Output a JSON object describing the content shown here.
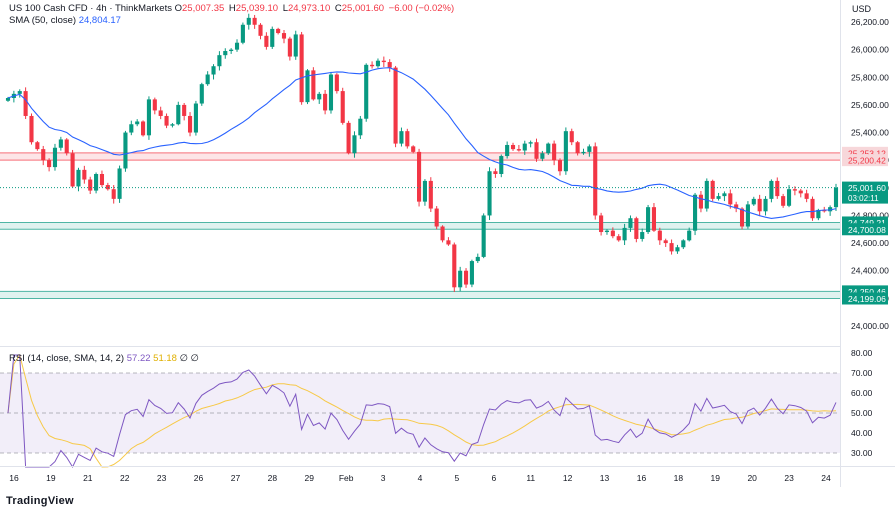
{
  "header": {
    "symbol": "US 100 Cash CFD · 4h · ThinkMarkets",
    "o_label": "O",
    "o_value": "25,007.35",
    "h_label": "H",
    "h_value": "25,039.10",
    "l_label": "L",
    "l_value": "24,973.10",
    "c_label": "C",
    "c_value": "25,001.60",
    "change": "−6.00 (−0.02%)",
    "sma_label": "SMA (50, close)",
    "sma_value": "24,804.17",
    "rsi_label": "RSI (14, close, SMA, 14, 2)",
    "rsi_value": "57.22",
    "rsi_sma_value": "51.18",
    "rsi_extra": "∅ ∅"
  },
  "currency": "USD",
  "branding": "TradingView",
  "colors": {
    "up": "#089981",
    "down": "#f23645",
    "sma": "#2962ff",
    "rsi": "#7e57c2",
    "rsi_sma": "#f7c948",
    "resistance_zone": "#f23645",
    "support_zone": "#089981"
  },
  "chart_data": [
    {
      "type": "candlestick",
      "title": "US 100 Cash CFD · 4h · ThinkMarkets",
      "ylabel": "USD",
      "ylim": [
        24000,
        26300
      ],
      "y_ticks": [
        24000,
        24200,
        24400,
        24600,
        24800,
        25000,
        25200,
        25400,
        25600,
        25800,
        26000,
        26200
      ],
      "x_tick_labels": [
        "16",
        "19",
        "21",
        "22",
        "23",
        "26",
        "27",
        "28",
        "29",
        "Feb",
        "3",
        "4",
        "5",
        "6",
        "11",
        "12",
        "13",
        "16",
        "18",
        "19",
        "20",
        "23",
        "24"
      ],
      "last_price": 25001.6,
      "countdown": "03:02:11",
      "zones": [
        {
          "name": "resistance",
          "low": 25200.42,
          "high": 25253.12
        },
        {
          "name": "support-upper",
          "low": 24700.08,
          "high": 24749.21
        },
        {
          "name": "support-lower",
          "low": 24199.06,
          "high": 24250.46
        }
      ],
      "closes": [
        25650,
        25680,
        25700,
        25520,
        25330,
        25280,
        25200,
        25150,
        25290,
        25350,
        25250,
        25010,
        25130,
        25060,
        24980,
        25100,
        25020,
        24990,
        24920,
        25140,
        25400,
        25460,
        25480,
        25380,
        25640,
        25560,
        25520,
        25450,
        25460,
        25600,
        25520,
        25400,
        25610,
        25750,
        25820,
        25880,
        25960,
        25990,
        26000,
        26050,
        26180,
        26230,
        26180,
        26100,
        26020,
        26150,
        26120,
        26080,
        25950,
        26110,
        25620,
        25850,
        25640,
        25680,
        25560,
        25820,
        25700,
        25470,
        25250,
        25380,
        25500,
        25890,
        25880,
        25920,
        25910,
        25870,
        25320,
        25410,
        25300,
        25260,
        24900,
        25050,
        24850,
        24720,
        24620,
        24590,
        24280,
        24400,
        24300,
        24470,
        24500,
        24800,
        25120,
        25100,
        25230,
        25310,
        25280,
        25270,
        25320,
        25330,
        25210,
        25250,
        25320,
        25200,
        25120,
        25410,
        25330,
        25250,
        25260,
        25300,
        24800,
        24680,
        24690,
        24650,
        24620,
        24710,
        24780,
        24630,
        24680,
        24860,
        24690,
        24620,
        24600,
        24540,
        24570,
        24620,
        24690,
        24950,
        24850,
        25050,
        24920,
        24940,
        24960,
        24880,
        24850,
        24720,
        24880,
        24920,
        24830,
        24920,
        25050,
        24940,
        24870,
        24990,
        24980,
        24960,
        24920,
        24780,
        24840,
        24830,
        24860,
        25001.6
      ],
      "sma": {
        "name": "SMA (50, close)",
        "last": 24804.17
      }
    },
    {
      "type": "line",
      "title": "RSI (14, close, SMA, 14, 2)",
      "ylim": [
        22,
        80
      ],
      "y_ticks": [
        30,
        40,
        50,
        60,
        70,
        80
      ],
      "bands": [
        30,
        50,
        70
      ],
      "series": [
        {
          "name": "RSI",
          "last": 57.22
        },
        {
          "name": "RSI SMA",
          "last": 51.18
        }
      ]
    }
  ]
}
